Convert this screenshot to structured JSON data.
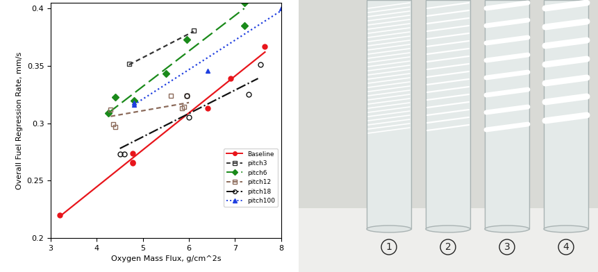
{
  "chart_data": {
    "type": "scatter",
    "x_label": "Oxygen Mass Flux, g/cm^2s",
    "y_label": "Overall Fuel Regression Rate, mm/s",
    "xlim": [
      3,
      8
    ],
    "xticks": [
      3,
      4,
      5,
      6,
      7,
      8
    ],
    "ylim": [
      0.2,
      0.405
    ],
    "yticks": [
      0.2,
      0.25,
      0.3,
      0.35,
      0.4
    ],
    "grid": false,
    "legend": "lower right",
    "series": [
      {
        "name": "Baseline",
        "color": "#e8151b",
        "marker": "circle",
        "line_style": "solid",
        "x": [
          3.2,
          4.77,
          4.77,
          4.77,
          6.4,
          6.9,
          7.65
        ],
        "y": [
          0.22,
          0.274,
          0.266,
          0.265,
          0.313,
          0.339,
          0.367
        ],
        "fit_x": [
          3.2,
          7.65
        ],
        "fit_y": [
          0.219,
          0.362
        ]
      },
      {
        "name": "pitch3",
        "color": "#333333",
        "marker": "open square",
        "line_style": "dashed",
        "x": [
          4.7,
          6.1
        ],
        "y": [
          0.352,
          0.381
        ],
        "fit_x": [
          4.7,
          6.1
        ],
        "fit_y": [
          0.351,
          0.38
        ]
      },
      {
        "name": "pitch6",
        "color": "#1a8a1a",
        "marker": "diamond",
        "line_style": "long_dashed",
        "x": [
          4.25,
          4.4,
          4.8,
          5.5,
          5.95,
          7.2,
          7.2
        ],
        "y": [
          0.309,
          0.323,
          0.32,
          0.343,
          0.373,
          0.405,
          0.385
        ],
        "fit_x": [
          4.25,
          7.2
        ],
        "fit_y": [
          0.309,
          0.4
        ]
      },
      {
        "name": "pitch12",
        "color": "#8b6a5a",
        "marker": "open square",
        "line_style": "dashed",
        "x": [
          4.3,
          4.35,
          4.4,
          5.6,
          5.85,
          5.9,
          5.95
        ],
        "y": [
          0.312,
          0.299,
          0.297,
          0.324,
          0.313,
          0.314,
          0.324
        ],
        "fit_x": [
          4.3,
          6.0
        ],
        "fit_y": [
          0.306,
          0.318
        ]
      },
      {
        "name": "pitch18",
        "color": "#111111",
        "marker": "open circle",
        "line_style": "dashdot",
        "x": [
          4.5,
          4.6,
          5.95,
          6.0,
          7.3,
          7.55
        ],
        "y": [
          0.273,
          0.273,
          0.324,
          0.305,
          0.325,
          0.351
        ],
        "fit_x": [
          4.5,
          7.5
        ],
        "fit_y": [
          0.278,
          0.339
        ]
      },
      {
        "name": "pitch100",
        "color": "#1f3fe0",
        "marker": "triangle",
        "line_style": "dotted",
        "x": [
          4.8,
          4.8,
          6.4,
          8.0
        ],
        "y": [
          0.316,
          0.318,
          0.346,
          0.4
        ],
        "fit_x": [
          4.8,
          8.0
        ],
        "fit_y": [
          0.316,
          0.398
        ]
      }
    ]
  },
  "photo": {
    "labels": [
      "1",
      "2",
      "3",
      "4"
    ]
  }
}
